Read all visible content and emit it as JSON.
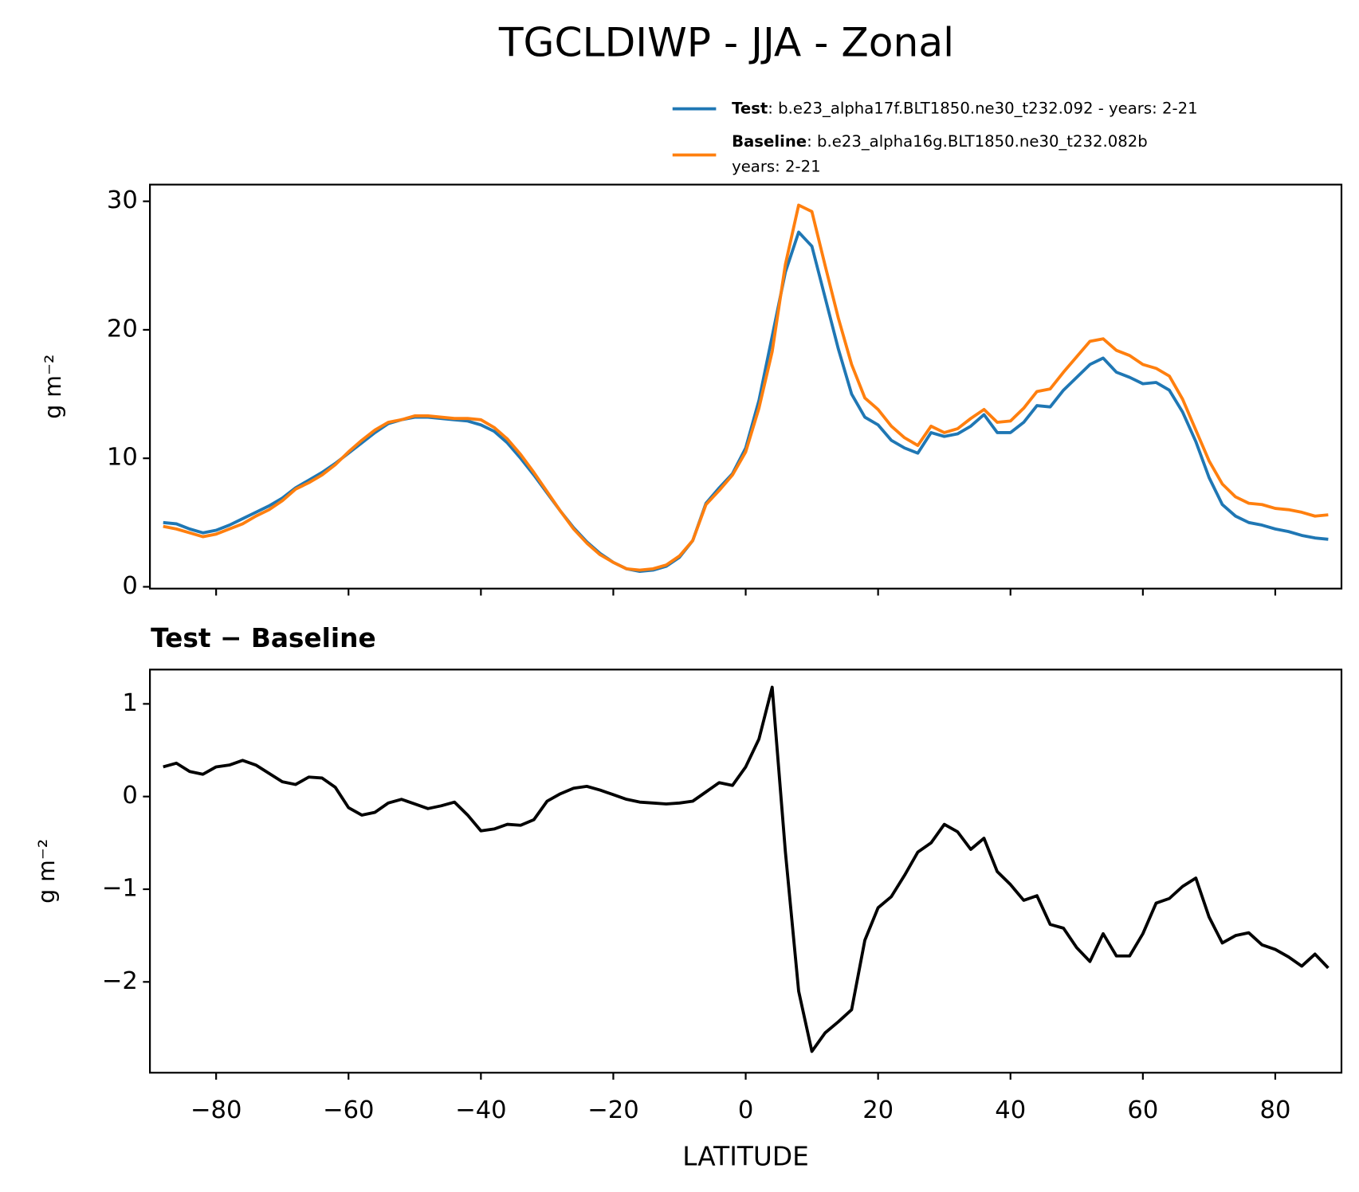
{
  "chart_data": [
    {
      "type": "line",
      "title": "TGCLDIWP - JJA - Zonal",
      "ylabel": "g m⁻²",
      "x": [
        -88,
        -86,
        -84,
        -82,
        -80,
        -78,
        -76,
        -74,
        -72,
        -70,
        -68,
        -66,
        -64,
        -62,
        -60,
        -58,
        -56,
        -54,
        -52,
        -50,
        -48,
        -46,
        -44,
        -42,
        -40,
        -38,
        -36,
        -34,
        -32,
        -30,
        -28,
        -26,
        -24,
        -22,
        -20,
        -18,
        -16,
        -14,
        -12,
        -10,
        -8,
        -6,
        -4,
        -2,
        0,
        2,
        4,
        6,
        8,
        10,
        12,
        14,
        16,
        18,
        20,
        22,
        24,
        26,
        28,
        30,
        32,
        34,
        36,
        38,
        40,
        42,
        44,
        46,
        48,
        50,
        52,
        54,
        56,
        58,
        60,
        62,
        64,
        66,
        68,
        70,
        72,
        74,
        76,
        78,
        80,
        82,
        84,
        86,
        88
      ],
      "series": [
        {
          "name": "Test",
          "description": [
            ": b.e23_alpha17f.BLT1850.ne30_t232.092 - years: 2-21"
          ],
          "color": "#1f77b4",
          "values": [
            5.0,
            4.9,
            4.5,
            4.2,
            4.4,
            4.8,
            5.3,
            5.8,
            6.3,
            6.9,
            7.7,
            8.3,
            8.9,
            9.6,
            10.4,
            11.2,
            12.0,
            12.7,
            13.0,
            13.2,
            13.2,
            13.1,
            13.0,
            12.9,
            12.6,
            12.1,
            11.2,
            10.0,
            8.7,
            7.3,
            5.9,
            4.6,
            3.5,
            2.6,
            1.9,
            1.4,
            1.2,
            1.3,
            1.6,
            2.3,
            3.6,
            6.5,
            7.7,
            8.8,
            10.8,
            14.5,
            19.5,
            24.5,
            27.6,
            26.5,
            22.5,
            18.5,
            15.0,
            13.2,
            12.6,
            11.4,
            10.8,
            10.4,
            12.0,
            11.7,
            11.9,
            12.5,
            13.4,
            12.0,
            12.0,
            12.8,
            14.1,
            14.0,
            15.3,
            16.3,
            17.3,
            17.8,
            16.7,
            16.3,
            15.8,
            15.9,
            15.3,
            13.6,
            11.3,
            8.5,
            6.4,
            5.5,
            5.0,
            4.8,
            4.5,
            4.3,
            4.0,
            3.8,
            3.7
          ]
        },
        {
          "name": "Baseline",
          "description": [
            ": b.e23_alpha16g.BLT1850.ne30_t232.082b",
            "years: 2-21"
          ],
          "color": "#ff7f0e",
          "values": [
            4.7,
            4.5,
            4.2,
            3.9,
            4.1,
            4.5,
            4.9,
            5.5,
            6.0,
            6.7,
            7.6,
            8.1,
            8.7,
            9.5,
            10.5,
            11.4,
            12.2,
            12.8,
            13.0,
            13.3,
            13.3,
            13.2,
            13.1,
            13.1,
            13.0,
            12.4,
            11.5,
            10.3,
            8.9,
            7.4,
            5.9,
            4.5,
            3.4,
            2.5,
            1.9,
            1.4,
            1.3,
            1.4,
            1.7,
            2.4,
            3.6,
            6.4,
            7.5,
            8.7,
            10.5,
            13.9,
            18.3,
            25.1,
            29.7,
            29.2,
            25.0,
            20.9,
            17.3,
            14.7,
            13.8,
            12.5,
            11.6,
            11.0,
            12.5,
            12.0,
            12.3,
            13.1,
            13.8,
            12.8,
            12.9,
            13.9,
            15.2,
            15.4,
            16.7,
            17.9,
            19.1,
            19.3,
            18.4,
            18.0,
            17.3,
            17.0,
            16.4,
            14.6,
            12.2,
            9.8,
            8.0,
            7.0,
            6.5,
            6.4,
            6.1,
            6.0,
            5.8,
            5.5,
            5.6
          ]
        }
      ],
      "xlim": [
        -90,
        90
      ],
      "xticks": [
        -80,
        -60,
        -40,
        -20,
        0,
        20,
        40,
        60,
        80
      ],
      "ylim": [
        -0.14,
        31.3
      ],
      "yticks": [
        0,
        10,
        20,
        30
      ]
    },
    {
      "type": "line",
      "title": "Test − Baseline",
      "xlabel": "LATITUDE",
      "ylabel": "g m⁻²",
      "x": [
        -88,
        -86,
        -84,
        -82,
        -80,
        -78,
        -76,
        -74,
        -72,
        -70,
        -68,
        -66,
        -64,
        -62,
        -60,
        -58,
        -56,
        -54,
        -52,
        -50,
        -48,
        -46,
        -44,
        -42,
        -40,
        -38,
        -36,
        -34,
        -32,
        -30,
        -28,
        -26,
        -24,
        -22,
        -20,
        -18,
        -16,
        -14,
        -12,
        -10,
        -8,
        -6,
        -4,
        -2,
        0,
        2,
        4,
        6,
        8,
        10,
        12,
        14,
        16,
        18,
        20,
        22,
        24,
        26,
        28,
        30,
        32,
        34,
        36,
        38,
        40,
        42,
        44,
        46,
        48,
        50,
        52,
        54,
        56,
        58,
        60,
        62,
        64,
        66,
        68,
        70,
        72,
        74,
        76,
        78,
        80,
        82,
        84,
        86,
        88
      ],
      "series": [
        {
          "color": "#000000",
          "values": [
            0.32,
            0.36,
            0.27,
            0.24,
            0.32,
            0.34,
            0.39,
            0.34,
            0.25,
            0.16,
            0.13,
            0.21,
            0.2,
            0.1,
            -0.12,
            -0.2,
            -0.17,
            -0.07,
            -0.03,
            -0.08,
            -0.13,
            -0.1,
            -0.06,
            -0.2,
            -0.37,
            -0.35,
            -0.3,
            -0.31,
            -0.25,
            -0.05,
            0.03,
            0.09,
            0.11,
            0.07,
            0.02,
            -0.03,
            -0.06,
            -0.07,
            -0.08,
            -0.07,
            -0.05,
            0.05,
            0.15,
            0.12,
            0.32,
            0.62,
            1.18,
            -0.6,
            -2.1,
            -2.75,
            -2.55,
            -2.43,
            -2.3,
            -1.55,
            -1.2,
            -1.08,
            -0.85,
            -0.6,
            -0.5,
            -0.3,
            -0.38,
            -0.57,
            -0.45,
            -0.81,
            -0.95,
            -1.12,
            -1.07,
            -1.38,
            -1.42,
            -1.63,
            -1.78,
            -1.48,
            -1.72,
            -1.72,
            -1.48,
            -1.15,
            -1.1,
            -0.97,
            -0.88,
            -1.3,
            -1.58,
            -1.5,
            -1.47,
            -1.6,
            -1.65,
            -1.73,
            -1.83,
            -1.7,
            -1.85
          ]
        }
      ],
      "xlim": [
        -90,
        90
      ],
      "xticks": [
        {
          "value": -80,
          "label": "−80"
        },
        {
          "value": -60,
          "label": "−60"
        },
        {
          "value": -40,
          "label": "−40"
        },
        {
          "value": -20,
          "label": "−20"
        },
        0,
        20,
        40,
        60,
        80
      ],
      "ylim": [
        -2.98,
        1.37
      ],
      "yticks": [
        {
          "value": -2,
          "label": "−2"
        },
        {
          "value": -1,
          "label": "−1"
        },
        0,
        1
      ]
    }
  ]
}
